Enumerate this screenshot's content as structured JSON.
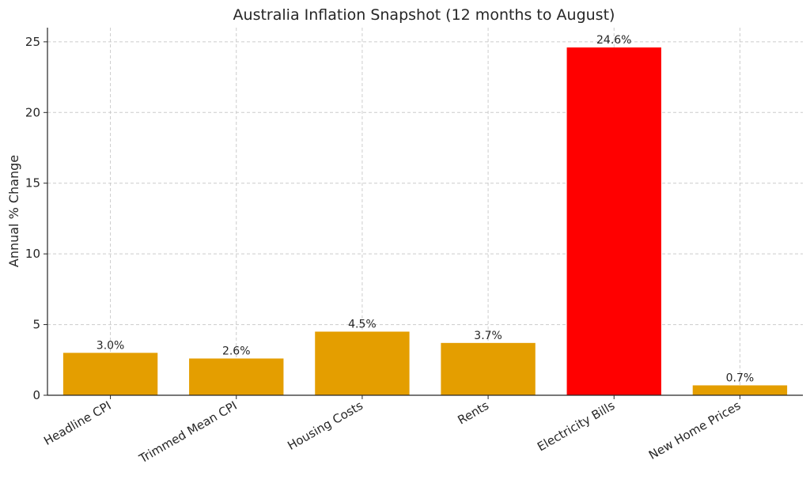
{
  "chart_data": {
    "type": "bar",
    "title": "Australia Inflation Snapshot (12 months to August)",
    "xlabel": "",
    "ylabel": "Annual % Change",
    "categories": [
      "Headline CPI",
      "Trimmed Mean CPI",
      "Housing Costs",
      "Rents",
      "Electricity Bills",
      "New Home Prices"
    ],
    "values": [
      3.0,
      2.6,
      4.5,
      3.7,
      24.6,
      0.7
    ],
    "data_labels": [
      "3.0%",
      "2.6%",
      "4.5%",
      "3.7%",
      "24.6%",
      "0.7%"
    ],
    "bar_colors": [
      "#e49e00",
      "#e49e00",
      "#e49e00",
      "#e49e00",
      "#ff0000",
      "#e49e00"
    ],
    "ylim": [
      0,
      26
    ],
    "yticks": [
      0,
      5,
      10,
      15,
      20,
      25
    ],
    "grid": true,
    "legend": "none"
  }
}
